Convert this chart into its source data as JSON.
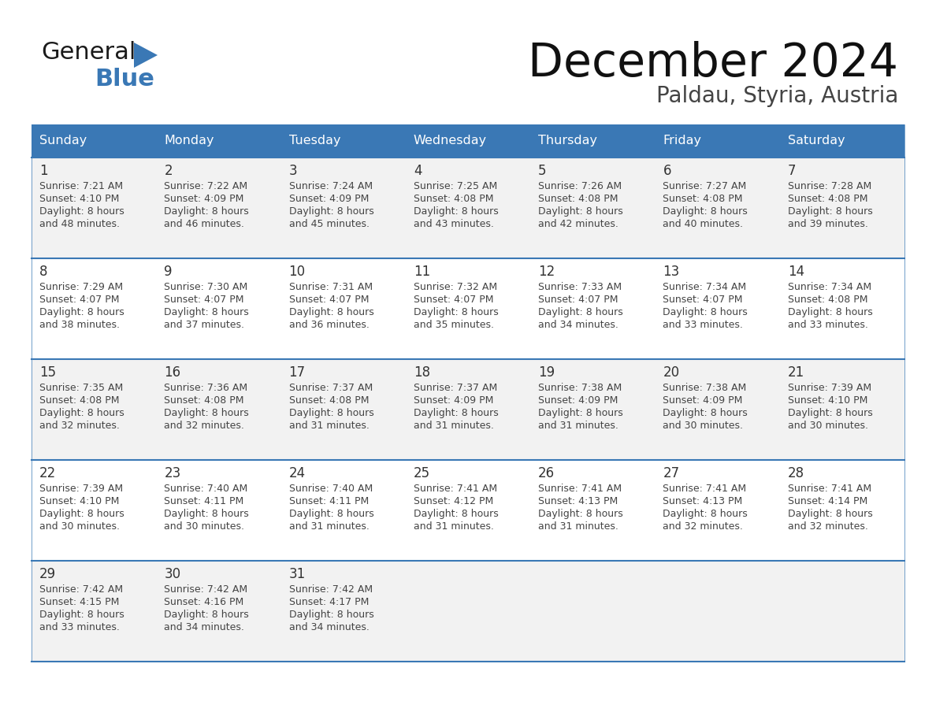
{
  "title": "December 2024",
  "subtitle": "Paldau, Styria, Austria",
  "days_of_week": [
    "Sunday",
    "Monday",
    "Tuesday",
    "Wednesday",
    "Thursday",
    "Friday",
    "Saturday"
  ],
  "header_bg_color": "#3a78b5",
  "header_text_color": "#ffffff",
  "row_bg_even": "#f2f2f2",
  "row_bg_odd": "#ffffff",
  "border_color": "#3a78b5",
  "day_number_color": "#333333",
  "cell_text_color": "#444444",
  "title_color": "#111111",
  "subtitle_color": "#444444",
  "logo_general_color": "#1a1a1a",
  "logo_blue_color": "#3a78b5",
  "logo_triangle_color": "#3a78b5",
  "calendar_data": [
    [
      {
        "day": 1,
        "sunrise": "7:21 AM",
        "sunset": "4:10 PM",
        "daylight_hours": 8,
        "daylight_minutes": 48
      },
      {
        "day": 2,
        "sunrise": "7:22 AM",
        "sunset": "4:09 PM",
        "daylight_hours": 8,
        "daylight_minutes": 46
      },
      {
        "day": 3,
        "sunrise": "7:24 AM",
        "sunset": "4:09 PM",
        "daylight_hours": 8,
        "daylight_minutes": 45
      },
      {
        "day": 4,
        "sunrise": "7:25 AM",
        "sunset": "4:08 PM",
        "daylight_hours": 8,
        "daylight_minutes": 43
      },
      {
        "day": 5,
        "sunrise": "7:26 AM",
        "sunset": "4:08 PM",
        "daylight_hours": 8,
        "daylight_minutes": 42
      },
      {
        "day": 6,
        "sunrise": "7:27 AM",
        "sunset": "4:08 PM",
        "daylight_hours": 8,
        "daylight_minutes": 40
      },
      {
        "day": 7,
        "sunrise": "7:28 AM",
        "sunset": "4:08 PM",
        "daylight_hours": 8,
        "daylight_minutes": 39
      }
    ],
    [
      {
        "day": 8,
        "sunrise": "7:29 AM",
        "sunset": "4:07 PM",
        "daylight_hours": 8,
        "daylight_minutes": 38
      },
      {
        "day": 9,
        "sunrise": "7:30 AM",
        "sunset": "4:07 PM",
        "daylight_hours": 8,
        "daylight_minutes": 37
      },
      {
        "day": 10,
        "sunrise": "7:31 AM",
        "sunset": "4:07 PM",
        "daylight_hours": 8,
        "daylight_minutes": 36
      },
      {
        "day": 11,
        "sunrise": "7:32 AM",
        "sunset": "4:07 PM",
        "daylight_hours": 8,
        "daylight_minutes": 35
      },
      {
        "day": 12,
        "sunrise": "7:33 AM",
        "sunset": "4:07 PM",
        "daylight_hours": 8,
        "daylight_minutes": 34
      },
      {
        "day": 13,
        "sunrise": "7:34 AM",
        "sunset": "4:07 PM",
        "daylight_hours": 8,
        "daylight_minutes": 33
      },
      {
        "day": 14,
        "sunrise": "7:34 AM",
        "sunset": "4:08 PM",
        "daylight_hours": 8,
        "daylight_minutes": 33
      }
    ],
    [
      {
        "day": 15,
        "sunrise": "7:35 AM",
        "sunset": "4:08 PM",
        "daylight_hours": 8,
        "daylight_minutes": 32
      },
      {
        "day": 16,
        "sunrise": "7:36 AM",
        "sunset": "4:08 PM",
        "daylight_hours": 8,
        "daylight_minutes": 32
      },
      {
        "day": 17,
        "sunrise": "7:37 AM",
        "sunset": "4:08 PM",
        "daylight_hours": 8,
        "daylight_minutes": 31
      },
      {
        "day": 18,
        "sunrise": "7:37 AM",
        "sunset": "4:09 PM",
        "daylight_hours": 8,
        "daylight_minutes": 31
      },
      {
        "day": 19,
        "sunrise": "7:38 AM",
        "sunset": "4:09 PM",
        "daylight_hours": 8,
        "daylight_minutes": 31
      },
      {
        "day": 20,
        "sunrise": "7:38 AM",
        "sunset": "4:09 PM",
        "daylight_hours": 8,
        "daylight_minutes": 30
      },
      {
        "day": 21,
        "sunrise": "7:39 AM",
        "sunset": "4:10 PM",
        "daylight_hours": 8,
        "daylight_minutes": 30
      }
    ],
    [
      {
        "day": 22,
        "sunrise": "7:39 AM",
        "sunset": "4:10 PM",
        "daylight_hours": 8,
        "daylight_minutes": 30
      },
      {
        "day": 23,
        "sunrise": "7:40 AM",
        "sunset": "4:11 PM",
        "daylight_hours": 8,
        "daylight_minutes": 30
      },
      {
        "day": 24,
        "sunrise": "7:40 AM",
        "sunset": "4:11 PM",
        "daylight_hours": 8,
        "daylight_minutes": 31
      },
      {
        "day": 25,
        "sunrise": "7:41 AM",
        "sunset": "4:12 PM",
        "daylight_hours": 8,
        "daylight_minutes": 31
      },
      {
        "day": 26,
        "sunrise": "7:41 AM",
        "sunset": "4:13 PM",
        "daylight_hours": 8,
        "daylight_minutes": 31
      },
      {
        "day": 27,
        "sunrise": "7:41 AM",
        "sunset": "4:13 PM",
        "daylight_hours": 8,
        "daylight_minutes": 32
      },
      {
        "day": 28,
        "sunrise": "7:41 AM",
        "sunset": "4:14 PM",
        "daylight_hours": 8,
        "daylight_minutes": 32
      }
    ],
    [
      {
        "day": 29,
        "sunrise": "7:42 AM",
        "sunset": "4:15 PM",
        "daylight_hours": 8,
        "daylight_minutes": 33
      },
      {
        "day": 30,
        "sunrise": "7:42 AM",
        "sunset": "4:16 PM",
        "daylight_hours": 8,
        "daylight_minutes": 34
      },
      {
        "day": 31,
        "sunrise": "7:42 AM",
        "sunset": "4:17 PM",
        "daylight_hours": 8,
        "daylight_minutes": 34
      },
      null,
      null,
      null,
      null
    ]
  ]
}
